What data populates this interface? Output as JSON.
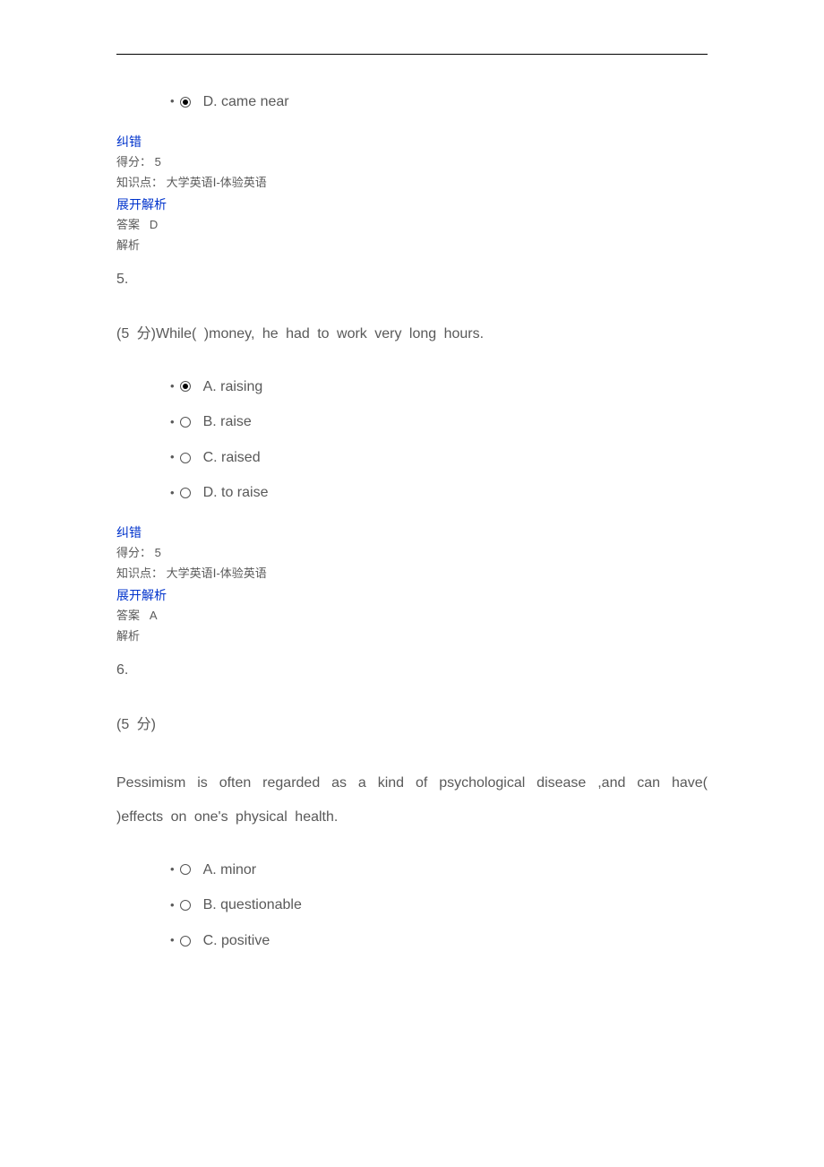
{
  "q4_tail_option": {
    "letter": "D",
    "text": "D. came near",
    "checked": true
  },
  "labels": {
    "report_error": "纠错",
    "score_prefix": "得分：",
    "kp_prefix": "知识点：",
    "expand": "展开解析",
    "answer_prefix": "答案",
    "explanation": "解析"
  },
  "q4_meta": {
    "score": "5",
    "knowledge_point": "大学英语Ⅰ-体验英语",
    "answer": "D"
  },
  "q5": {
    "number": "5.",
    "stem": "(5 分)While(   )money, he  had  to  work  very  long  hours.",
    "options": [
      {
        "letter": "A",
        "text": "A. raising",
        "checked": true
      },
      {
        "letter": "B",
        "text": "B. raise",
        "checked": false
      },
      {
        "letter": "C",
        "text": "C. raised",
        "checked": false
      },
      {
        "letter": "D",
        "text": "D. to raise",
        "checked": false
      }
    ],
    "meta": {
      "score": "5",
      "knowledge_point": "大学英语Ⅰ-体验英语",
      "answer": "A"
    }
  },
  "q6": {
    "number": "6.",
    "stem_prefix": "(5 分)",
    "stem": "Pessimism  is  often  regarded  as  a  kind  of  psychological  disease  ,and  can  have(   )effects  on  one's  physical  health.",
    "options": [
      {
        "letter": "A",
        "text": "A. minor",
        "checked": false
      },
      {
        "letter": "B",
        "text": "B. questionable",
        "checked": false
      },
      {
        "letter": "C",
        "text": "C. positive",
        "checked": false
      }
    ]
  }
}
